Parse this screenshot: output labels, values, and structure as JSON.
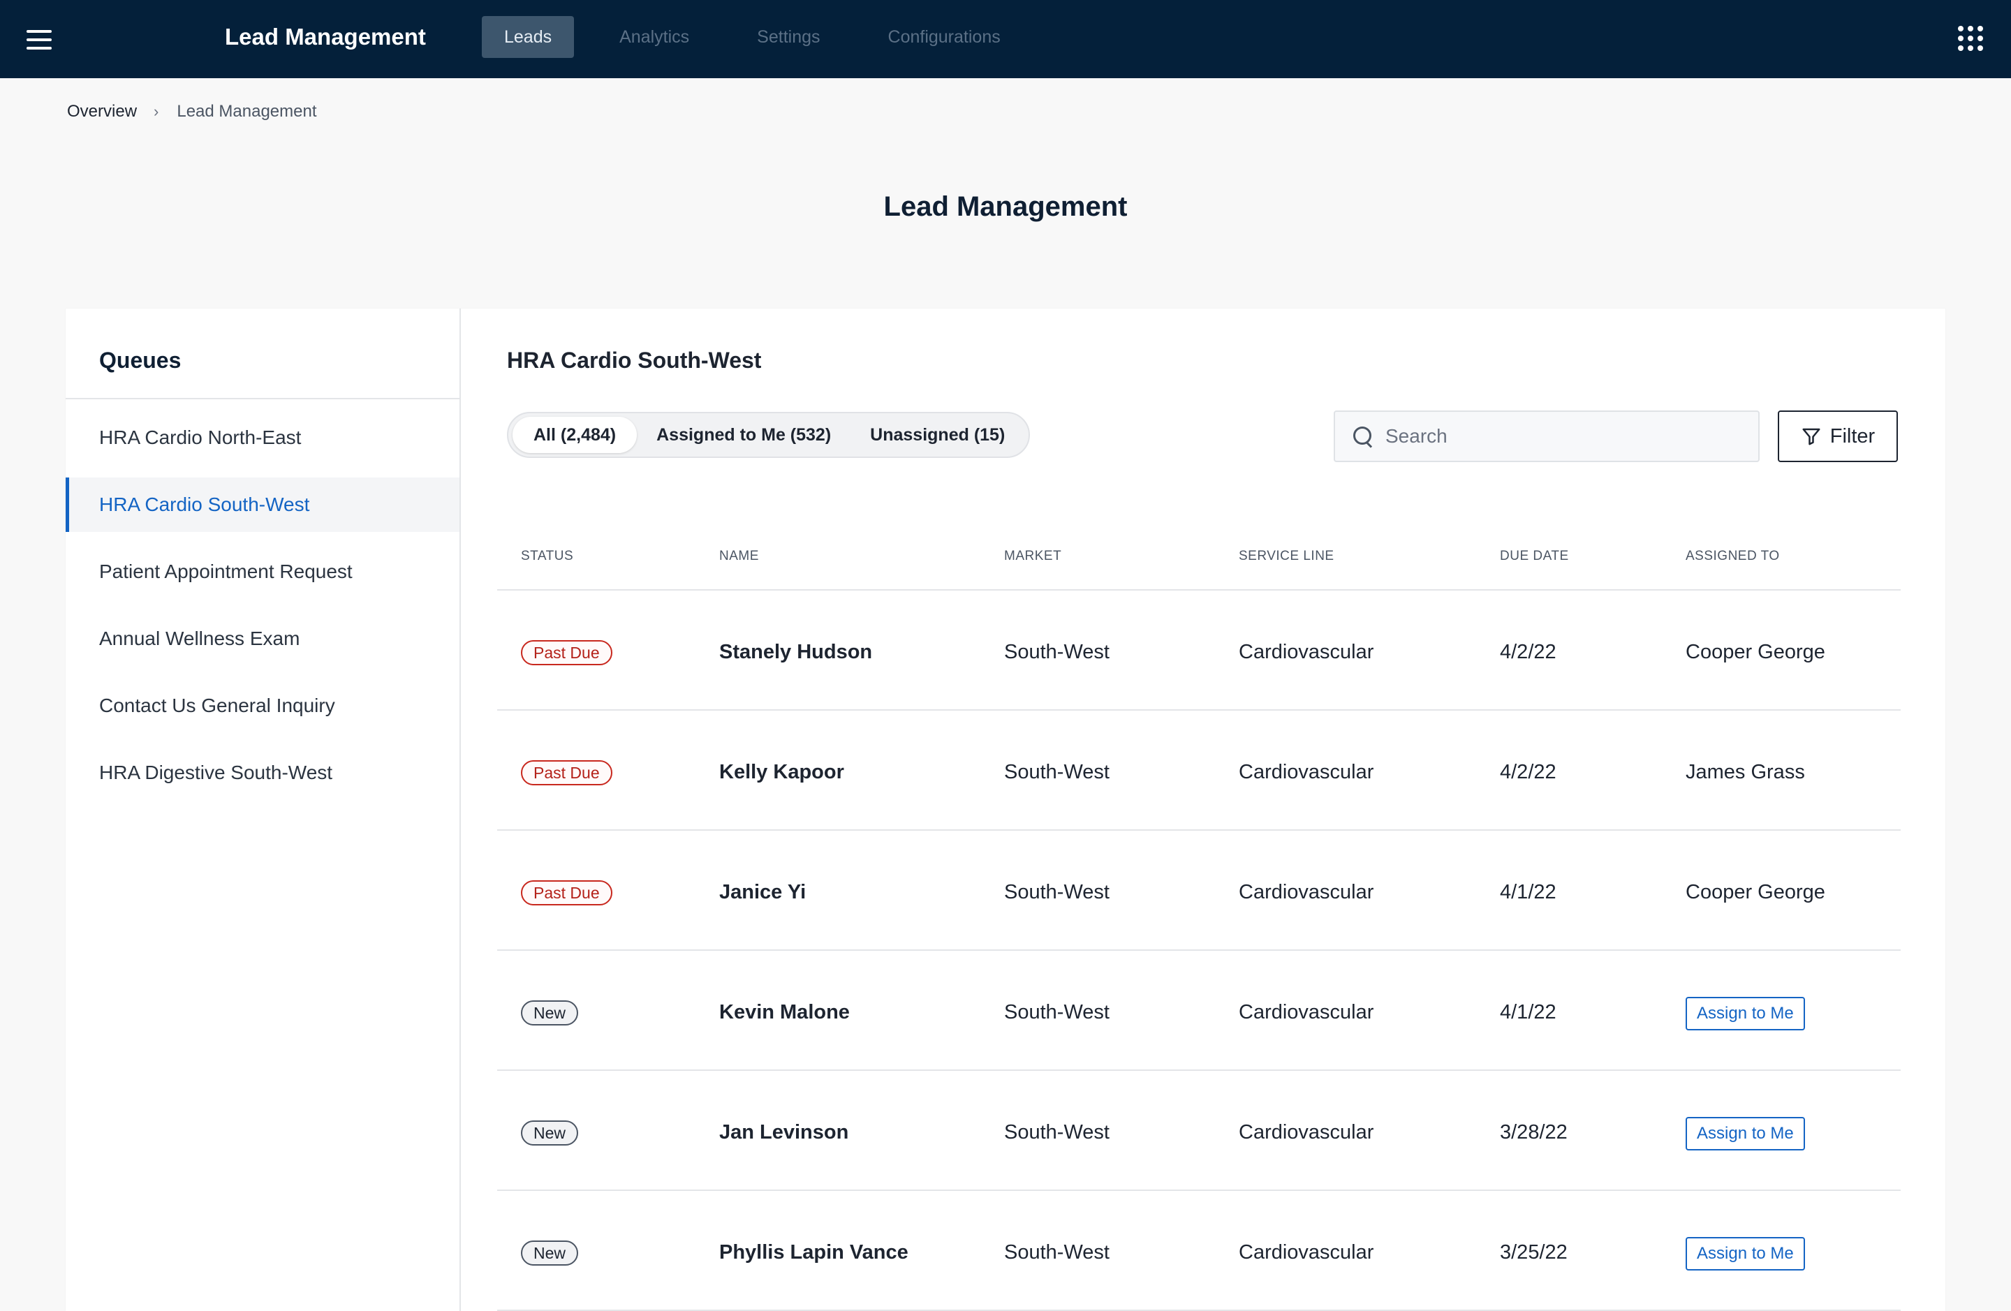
{
  "header": {
    "title": "Lead Management",
    "nav": [
      {
        "label": "Leads",
        "active": true
      },
      {
        "label": "Analytics",
        "active": false
      },
      {
        "label": "Settings",
        "active": false
      },
      {
        "label": "Configurations",
        "active": false
      }
    ],
    "icons": {
      "menu": "hamburger-menu-icon",
      "apps": "apps-grid-icon"
    }
  },
  "breadcrumb": {
    "root": "Overview",
    "separator": "›",
    "current": "Lead Management"
  },
  "page_title": "Lead Management",
  "queues": {
    "title": "Queues",
    "items": [
      {
        "label": "HRA Cardio North-East",
        "active": false
      },
      {
        "label": "HRA Cardio South-West",
        "active": true
      },
      {
        "label": "Patient Appointment Request",
        "active": false
      },
      {
        "label": "Annual Wellness Exam",
        "active": false
      },
      {
        "label": "Contact Us General Inquiry",
        "active": false
      },
      {
        "label": "HRA Digestive South-West",
        "active": false
      }
    ]
  },
  "main": {
    "title": "HRA Cardio South-West",
    "segments": [
      {
        "label": "All (2,484)",
        "active": true
      },
      {
        "label": "Assigned to Me (532)",
        "active": false
      },
      {
        "label": "Unassigned (15)",
        "active": false
      }
    ],
    "search": {
      "placeholder": "Search",
      "value": ""
    },
    "filter_label": "Filter"
  },
  "table": {
    "columns": [
      "STATUS",
      "NAME",
      "MARKET",
      "SERVICE LINE",
      "DUE DATE",
      "ASSIGNED TO"
    ],
    "assign_label": "Assign to Me",
    "rows": [
      {
        "status": "Past Due",
        "status_type": "past",
        "name": "Stanely Hudson",
        "market": "South-West",
        "service_line": "Cardiovascular",
        "due_date": "4/2/22",
        "assigned_to": "Cooper George"
      },
      {
        "status": "Past Due",
        "status_type": "past",
        "name": "Kelly Kapoor",
        "market": "South-West",
        "service_line": "Cardiovascular",
        "due_date": "4/2/22",
        "assigned_to": "James Grass"
      },
      {
        "status": "Past Due",
        "status_type": "past",
        "name": "Janice Yi",
        "market": "South-West",
        "service_line": "Cardiovascular",
        "due_date": "4/1/22",
        "assigned_to": "Cooper George"
      },
      {
        "status": "New",
        "status_type": "new",
        "name": "Kevin Malone",
        "market": "South-West",
        "service_line": "Cardiovascular",
        "due_date": "4/1/22",
        "assigned_to": null
      },
      {
        "status": "New",
        "status_type": "new",
        "name": "Jan Levinson",
        "market": "South-West",
        "service_line": "Cardiovascular",
        "due_date": "3/28/22",
        "assigned_to": null
      },
      {
        "status": "New",
        "status_type": "new",
        "name": "Phyllis Lapin Vance",
        "market": "South-West",
        "service_line": "Cardiovascular",
        "due_date": "3/25/22",
        "assigned_to": null
      }
    ]
  },
  "colors": {
    "topbar": "#04203a",
    "accent": "#1464c4",
    "past_due": "#c8281e"
  }
}
